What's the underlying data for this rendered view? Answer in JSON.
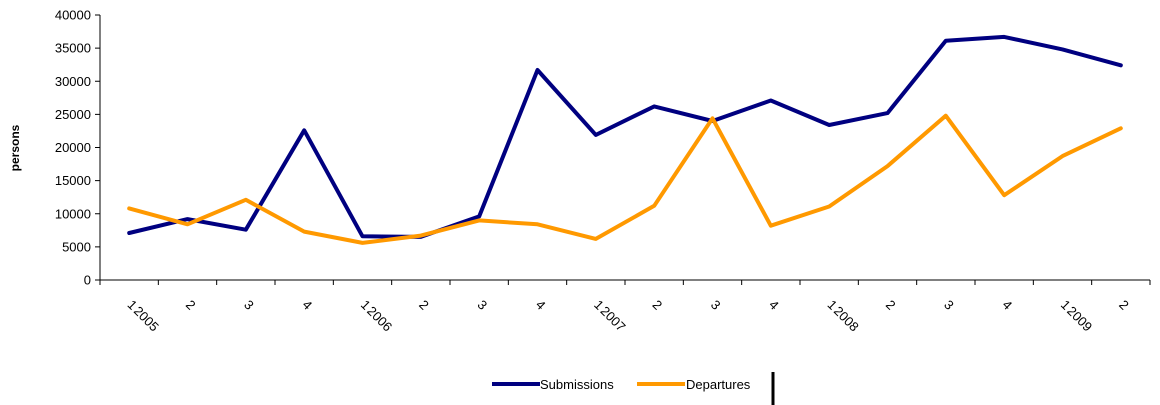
{
  "chart_data": {
    "type": "line",
    "ylabel": "persons",
    "ylim": [
      0,
      40000
    ],
    "yticks": [
      "0",
      "5000",
      "10000",
      "15000",
      "20000",
      "25000",
      "30000",
      "35000",
      "40000"
    ],
    "categories": [
      {
        "q": "1",
        "year": "2005"
      },
      {
        "q": "2",
        "year": ""
      },
      {
        "q": "3",
        "year": ""
      },
      {
        "q": "4",
        "year": ""
      },
      {
        "q": "1",
        "year": "2006"
      },
      {
        "q": "2",
        "year": ""
      },
      {
        "q": "3",
        "year": ""
      },
      {
        "q": "4",
        "year": ""
      },
      {
        "q": "1",
        "year": "2007"
      },
      {
        "q": "2",
        "year": ""
      },
      {
        "q": "3",
        "year": ""
      },
      {
        "q": "4",
        "year": ""
      },
      {
        "q": "1",
        "year": "2008"
      },
      {
        "q": "2",
        "year": ""
      },
      {
        "q": "3",
        "year": ""
      },
      {
        "q": "4",
        "year": ""
      },
      {
        "q": "1",
        "year": "2009"
      },
      {
        "q": "2",
        "year": ""
      }
    ],
    "series": [
      {
        "name": "Submissions",
        "color": "#000080",
        "values": [
          7100,
          9200,
          7600,
          22600,
          6600,
          6500,
          9600,
          31700,
          21900,
          26200,
          24000,
          27100,
          23400,
          25200,
          36100,
          36700,
          34800,
          32400
        ]
      },
      {
        "name": "Departures",
        "color": "#FF9900",
        "values": [
          10800,
          8400,
          12100,
          7300,
          5600,
          6700,
          9000,
          8400,
          6200,
          11200,
          24400,
          8200,
          11100,
          17200,
          24800,
          12800,
          18700,
          22900
        ]
      }
    ],
    "grid": false,
    "legend": "bottom"
  }
}
